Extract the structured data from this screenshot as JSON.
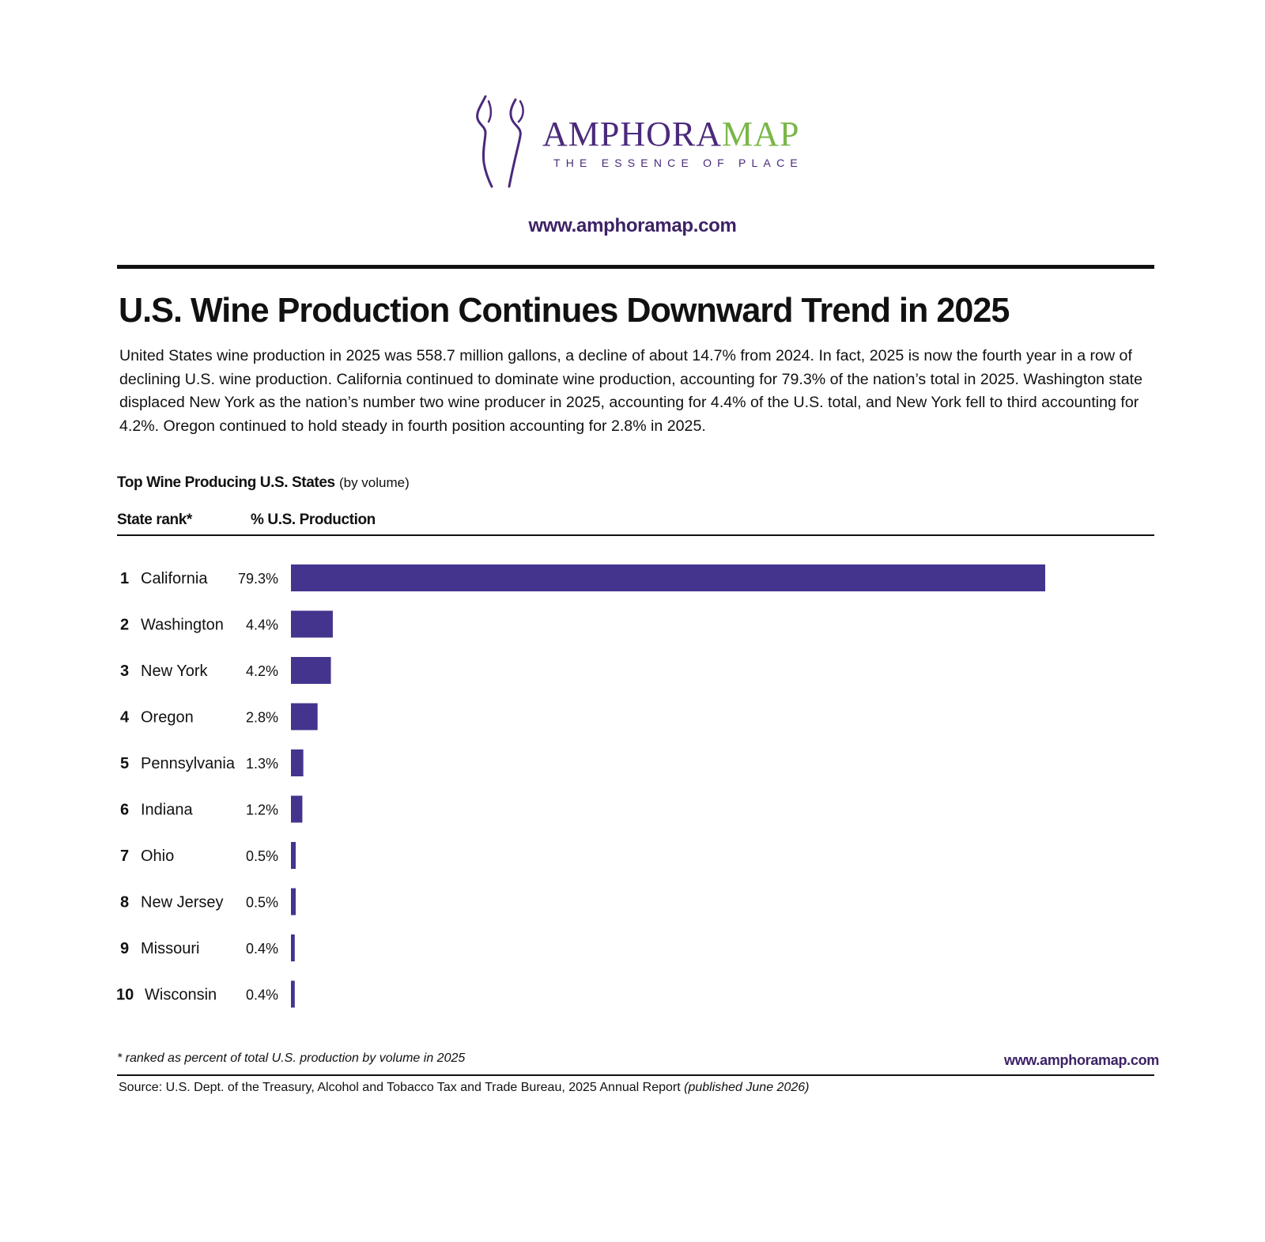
{
  "header": {
    "brand_part1": "AMPHORA",
    "brand_part2": "MAP",
    "tagline": "THE ESSENCE OF PLACE",
    "url": "www.amphoramap.com"
  },
  "article": {
    "title": "U.S. Wine Production Continues Downward Trend in 2025",
    "body": "United States wine production in 2025 was 558.7 million gallons, a decline of about 14.7% from 2024. In fact, 2025 is now the fourth year in a row of declining U.S. wine production. California continued to dominate wine production, accounting for 79.3% of the nation’s total in 2025. Washington state displaced New York as the nation’s number two wine producer in 2025, accounting for 4.4% of the U.S. total, and New York fell to third accounting for 4.2%. Oregon continued to hold steady in fourth position accounting for 2.8% in 2025."
  },
  "chart_data": {
    "type": "bar",
    "orientation": "horizontal",
    "title": "Top Wine Producing U.S. States",
    "subtitle": "(by volume)",
    "rank_header": "State rank*",
    "value_header": "% U.S. Production",
    "categories": [
      "California",
      "Washington",
      "New York",
      "Oregon",
      "Pennsylvania",
      "Indiana",
      "Ohio",
      "New Jersey",
      "Missouri",
      "Wisconsin"
    ],
    "ranks": [
      "1",
      "2",
      "3",
      "4",
      "5",
      "6",
      "7",
      "8",
      "9",
      "10"
    ],
    "values": [
      79.3,
      4.4,
      4.2,
      2.8,
      1.3,
      1.2,
      0.5,
      0.5,
      0.4,
      0.4
    ],
    "value_labels": [
      "79.3%",
      "4.4%",
      "4.2%",
      "2.8%",
      "1.3%",
      "1.2%",
      "0.5%",
      "0.5%",
      "0.4%",
      "0.4%"
    ],
    "bar_color": "#44348e",
    "grid": false
  },
  "footer": {
    "footnote": "* ranked as percent of total U.S. production by volume in 2025",
    "url": "www.amphoramap.com",
    "source": "Source: U.S. Dept. of the Treasury, Alcohol and Tobacco Tax and Trade Bureau, 2025 Annual Report",
    "source_note": "(published June 2026)"
  },
  "colors": {
    "brand_purple": "#4b2a7b",
    "brand_green": "#7ab648",
    "url_purple": "#3d2266"
  },
  "icons": {
    "logo": "amphora-outline-icon"
  }
}
